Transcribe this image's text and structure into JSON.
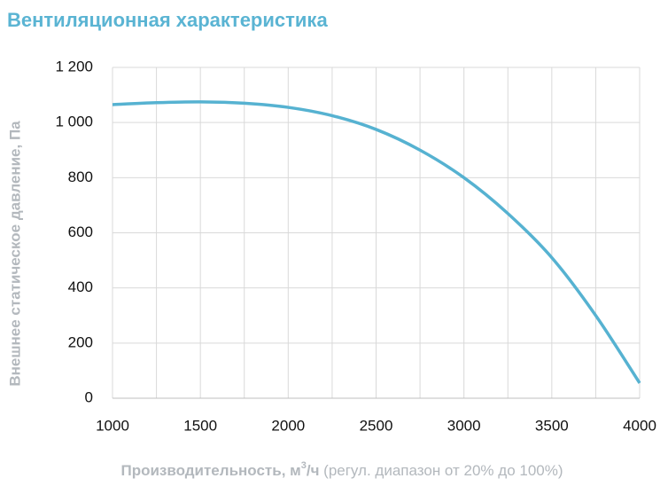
{
  "chart_data": {
    "type": "line",
    "title": "Вентиляционная характеристика",
    "ylabel": "Внешнее статическое давление, Па",
    "xlabel_parts": [
      "Производительность",
      ", м",
      "3",
      "/ч",
      " (регул. диапазон от 20% до 100%)"
    ],
    "x": [
      1000,
      1250,
      1500,
      1750,
      2000,
      2250,
      2500,
      2750,
      3000,
      3250,
      3500,
      3750,
      4000
    ],
    "series": [
      {
        "name": "Вентиляционная характеристика",
        "color": "#56b2d1",
        "values": [
          1065,
          1072,
          1075,
          1070,
          1055,
          1025,
          975,
          900,
          800,
          670,
          510,
          300,
          55
        ]
      }
    ],
    "xlim": [
      1000,
      4000
    ],
    "xticks": [
      1000,
      1500,
      2000,
      2500,
      3000,
      3500,
      4000
    ],
    "xminorticks": [
      1250,
      1750,
      2250,
      2750,
      3250,
      3750
    ],
    "ylim": [
      0,
      1200
    ],
    "yticks": [
      0,
      200,
      400,
      600,
      800,
      {
        "value": 1000,
        "label": "1 000"
      },
      {
        "value": 1200,
        "label": "1 200"
      }
    ],
    "grid": true
  }
}
